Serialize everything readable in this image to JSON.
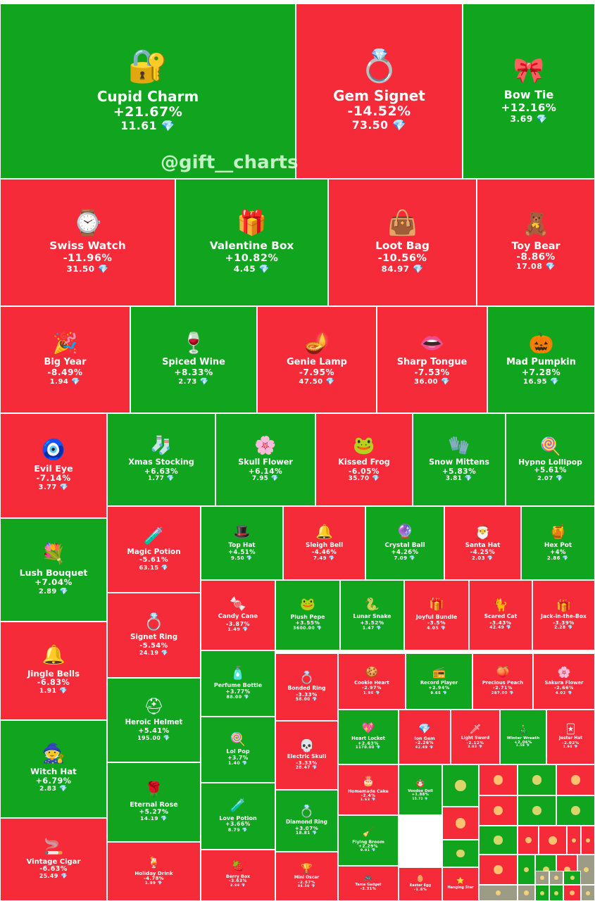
{
  "colors": {
    "up": "#11a51f",
    "down": "#f52b3a",
    "grey": "#9b9b86",
    "diamond": "#7fd3ff"
  },
  "watermark": "@gift__charts",
  "currency_icon": "💎",
  "chart_data": {
    "type": "treemap",
    "title": "",
    "items": [
      {
        "name": "Cupid Charm",
        "change": "+21.67%",
        "price": "11.61",
        "icon": "🔐"
      },
      {
        "name": "Gem Signet",
        "change": "-14.52%",
        "price": "73.50",
        "icon": "💍"
      },
      {
        "name": "Bow Tie",
        "change": "+12.16%",
        "price": "3.69",
        "icon": "🎀"
      },
      {
        "name": "Swiss Watch",
        "change": "-11.96%",
        "price": "31.50",
        "icon": "⌚"
      },
      {
        "name": "Valentine Box",
        "change": "+10.82%",
        "price": "4.45",
        "icon": "🎁"
      },
      {
        "name": "Loot Bag",
        "change": "-10.56%",
        "price": "84.97",
        "icon": "👜"
      },
      {
        "name": "Toy Bear",
        "change": "-8.86%",
        "price": "17.08",
        "icon": "🧸"
      },
      {
        "name": "Big Year",
        "change": "-8.49%",
        "price": "1.94",
        "icon": "🎉"
      },
      {
        "name": "Spiced Wine",
        "change": "+8.33%",
        "price": "2.73",
        "icon": "🍷"
      },
      {
        "name": "Genie Lamp",
        "change": "-7.95%",
        "price": "47.50",
        "icon": "🪔"
      },
      {
        "name": "Sharp Tongue",
        "change": "-7.53%",
        "price": "36.00",
        "icon": "👄"
      },
      {
        "name": "Mad Pumpkin",
        "change": "+7.28%",
        "price": "16.95",
        "icon": "🎃"
      },
      {
        "name": "Evil Eye",
        "change": "-7.14%",
        "price": "3.77",
        "icon": "🧿"
      },
      {
        "name": "Xmas Stocking",
        "change": "+6.63%",
        "price": "1.77",
        "icon": "🧦"
      },
      {
        "name": "Skull Flower",
        "change": "+6.14%",
        "price": "7.95",
        "icon": "🌸"
      },
      {
        "name": "Kissed Frog",
        "change": "-6.05%",
        "price": "35.70",
        "icon": "🐸"
      },
      {
        "name": "Snow Mittens",
        "change": "+5.83%",
        "price": "3.81",
        "icon": "🧤"
      },
      {
        "name": "Hypno Lollipop",
        "change": "+5.61%",
        "price": "2.07",
        "icon": "🍭"
      },
      {
        "name": "Lush Bouquet",
        "change": "+7.04%",
        "price": "2.89",
        "icon": "💐"
      },
      {
        "name": "Magic Potion",
        "change": "-5.61%",
        "price": "63.15",
        "icon": "🧪"
      },
      {
        "name": "Top Hat",
        "change": "+4.51%",
        "price": "9.50",
        "icon": "🎩"
      },
      {
        "name": "Sleigh Bell",
        "change": "-4.46%",
        "price": "7.49",
        "icon": "🔔"
      },
      {
        "name": "Crystal Ball",
        "change": "+4.26%",
        "price": "7.09",
        "icon": "🔮"
      },
      {
        "name": "Santa Hat",
        "change": "-4.25%",
        "price": "2.03",
        "icon": "🎅"
      },
      {
        "name": "Hex Pot",
        "change": "+4%",
        "price": "2.86",
        "icon": "🍯"
      },
      {
        "name": "Jingle Bells",
        "change": "-6.83%",
        "price": "1.91",
        "icon": "🔔"
      },
      {
        "name": "Signet Ring",
        "change": "-5.54%",
        "price": "24.19",
        "icon": "💍"
      },
      {
        "name": "Candy Cane",
        "change": "-3.87%",
        "price": "1.49",
        "icon": "🍬"
      },
      {
        "name": "Plush Pepe",
        "change": "+3.55%",
        "price": "3600.00",
        "icon": "🐸"
      },
      {
        "name": "Lunar Snake",
        "change": "+3.52%",
        "price": "1.47",
        "icon": "🐍"
      },
      {
        "name": "Joyful Bundle",
        "change": "-3.5%",
        "price": "4.05",
        "icon": "🎁"
      },
      {
        "name": "Scared Cat",
        "change": "-3.43%",
        "price": "42.49",
        "icon": "🐈"
      },
      {
        "name": "Jack-in-the-Box",
        "change": "-3.39%",
        "price": "2.28",
        "icon": "🎁"
      },
      {
        "name": "Witch Hat",
        "change": "+6.79%",
        "price": "2.83",
        "icon": "🧙"
      },
      {
        "name": "Heroic Helmet",
        "change": "+5.41%",
        "price": "195.00",
        "icon": "⛑"
      },
      {
        "name": "Perfume Bottle",
        "change": "+3.77%",
        "price": "88.00",
        "icon": "🧴"
      },
      {
        "name": "Bonded Ring",
        "change": "-3.33%",
        "price": "58.00",
        "icon": "💍"
      },
      {
        "name": "Cookie Heart",
        "change": "-2.97%",
        "price": "1.96",
        "icon": "🍪"
      },
      {
        "name": "Record Player",
        "change": "+2.94%",
        "price": "9.65",
        "icon": "📻"
      },
      {
        "name": "Precious Peach",
        "change": "-2.71%",
        "price": "287.00",
        "icon": "🍑"
      },
      {
        "name": "Sakura Flower",
        "change": "-2.66%",
        "price": "4.02",
        "icon": "🌸"
      },
      {
        "name": "Lol Pop",
        "change": "+3.7%",
        "price": "1.40",
        "icon": "🍭"
      },
      {
        "name": "Electric Skull",
        "change": "-3.33%",
        "price": "28.47",
        "icon": "💀"
      },
      {
        "name": "Heart Locket",
        "change": "+2.63%",
        "price": "1170.00",
        "icon": "💖"
      },
      {
        "name": "Ion Gem",
        "change": "-2.26%",
        "price": "42.49",
        "icon": "💎"
      },
      {
        "name": "Light Sword",
        "change": "-2.12%",
        "price": "3.83",
        "icon": "🗡"
      },
      {
        "name": "Winter Wreath",
        "change": "+2.06%",
        "price": "1.58",
        "icon": "🎄"
      },
      {
        "name": "Jester Hat",
        "change": "-2.02%",
        "price": "1.94",
        "icon": "🃏"
      },
      {
        "name": "Eternal Rose",
        "change": "+5.27%",
        "price": "14.19",
        "icon": "🌹"
      },
      {
        "name": "Homemade Cake",
        "change": "-2.4%",
        "price": "1.63",
        "icon": "🎂"
      },
      {
        "name": "Voodoo Doll",
        "change": "+1.88%",
        "price": "15.72",
        "icon": "🪆"
      },
      {
        "name": "Love Potion",
        "change": "+3.66%",
        "price": "8.79",
        "icon": "🧪"
      },
      {
        "name": "Diamond Ring",
        "change": "+3.07%",
        "price": "18.81",
        "icon": "💍"
      },
      {
        "name": "Flying Broom",
        "change": "+2.29%",
        "price": "9.01",
        "icon": "🧹"
      },
      {
        "name": "Vintage Cigar",
        "change": "-6.63%",
        "price": "25.49",
        "icon": "🚬"
      },
      {
        "name": "Holiday Drink",
        "change": "-4.78%",
        "price": "1.99",
        "icon": "🍹"
      },
      {
        "name": "Berry Box",
        "change": "-3.63%",
        "price": "3.98",
        "icon": "🍓"
      },
      {
        "name": "Mini Oscar",
        "change": "-2.57%",
        "price": "84.50",
        "icon": "🏆"
      },
      {
        "name": "Tama Gadget",
        "change": "-2.31%",
        "price": "",
        "icon": "🎮"
      },
      {
        "name": "Easter Egg",
        "change": "-1.8%",
        "price": "",
        "icon": "🥚"
      },
      {
        "name": "Hanging Star",
        "change": "",
        "price": "",
        "icon": "⭐"
      }
    ],
    "unlabeled_tiles": [
      {
        "dir": "up"
      },
      {
        "dir": "down"
      },
      {
        "dir": "up"
      },
      {
        "dir": "down"
      },
      {
        "dir": "down"
      },
      {
        "dir": "up"
      },
      {
        "dir": "up"
      },
      {
        "dir": "down"
      },
      {
        "dir": "up"
      },
      {
        "dir": "up"
      },
      {
        "dir": "down"
      },
      {
        "dir": "down"
      },
      {
        "dir": "down"
      },
      {
        "dir": "down"
      },
      {
        "dir": "down"
      },
      {
        "dir": "up"
      },
      {
        "dir": "up"
      },
      {
        "dir": "down"
      },
      {
        "dir": "grey"
      },
      {
        "dir": "grey"
      },
      {
        "dir": "grey"
      },
      {
        "dir": "up"
      },
      {
        "dir": "up"
      },
      {
        "dir": "down"
      },
      {
        "dir": "grey"
      },
      {
        "dir": "grey"
      },
      {
        "dir": "grey"
      },
      {
        "dir": "up"
      }
    ]
  }
}
